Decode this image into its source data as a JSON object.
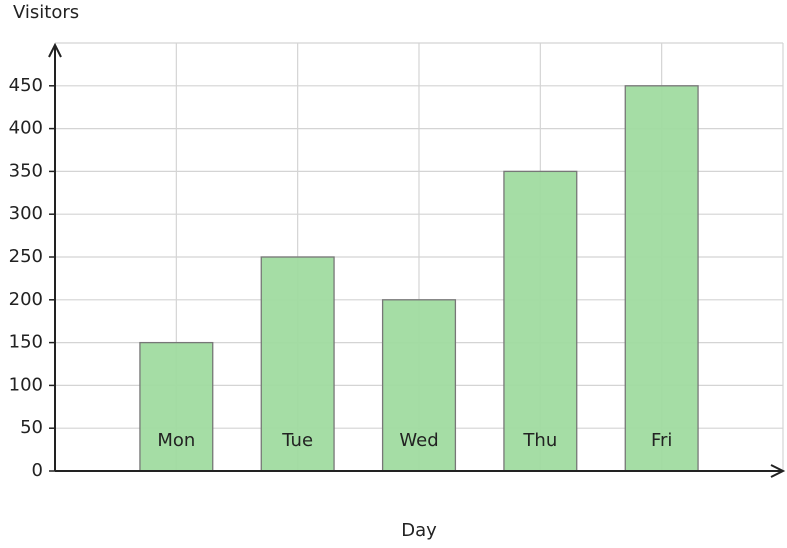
{
  "chart_data": {
    "type": "bar",
    "x_label": "Day",
    "y_label": "Visitors",
    "categories": [
      "Mon",
      "Tue",
      "Wed",
      "Thu",
      "Fri"
    ],
    "values": [
      150,
      250,
      200,
      350,
      450
    ],
    "color": "#a0dba0",
    "ylim": [
      0,
      500
    ],
    "yticks": [
      0,
      50,
      100,
      150,
      200,
      250,
      300,
      350,
      400,
      450
    ],
    "grid": true
  }
}
